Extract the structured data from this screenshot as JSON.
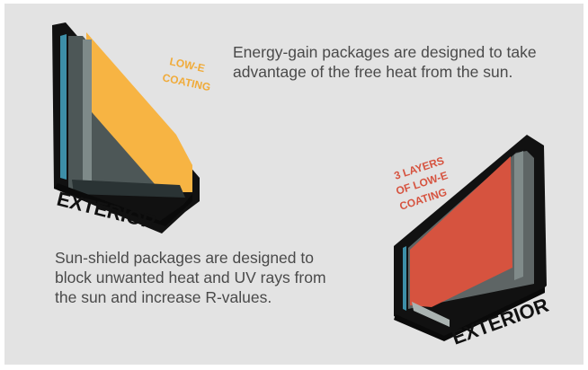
{
  "energy_gain": {
    "coating_label_line1": "LOW-E",
    "coating_label_line2": "COATING",
    "side_label": "EXTERIOR",
    "description": "Energy-gain packages are designed to take advantage of the free heat from the sun."
  },
  "sun_shield": {
    "coating_label_line1": "3 LAYERS",
    "coating_label_line2": "OF LOW-E",
    "coating_label_line3": "COATING",
    "side_label": "EXTERIOR",
    "description": "Sun-shield packages are designed to block unwanted heat and UV rays from the sun and increase R-values."
  },
  "colors": {
    "panel_background": "#e3e3e3",
    "frame": "#111111",
    "glass_edge": "#3d8fa8",
    "glass_fill": "#8f9a98",
    "low_e_coating": "#f7b443",
    "triple_low_e_coating": "#d6533f",
    "caption_text": "#4a4a4a"
  }
}
